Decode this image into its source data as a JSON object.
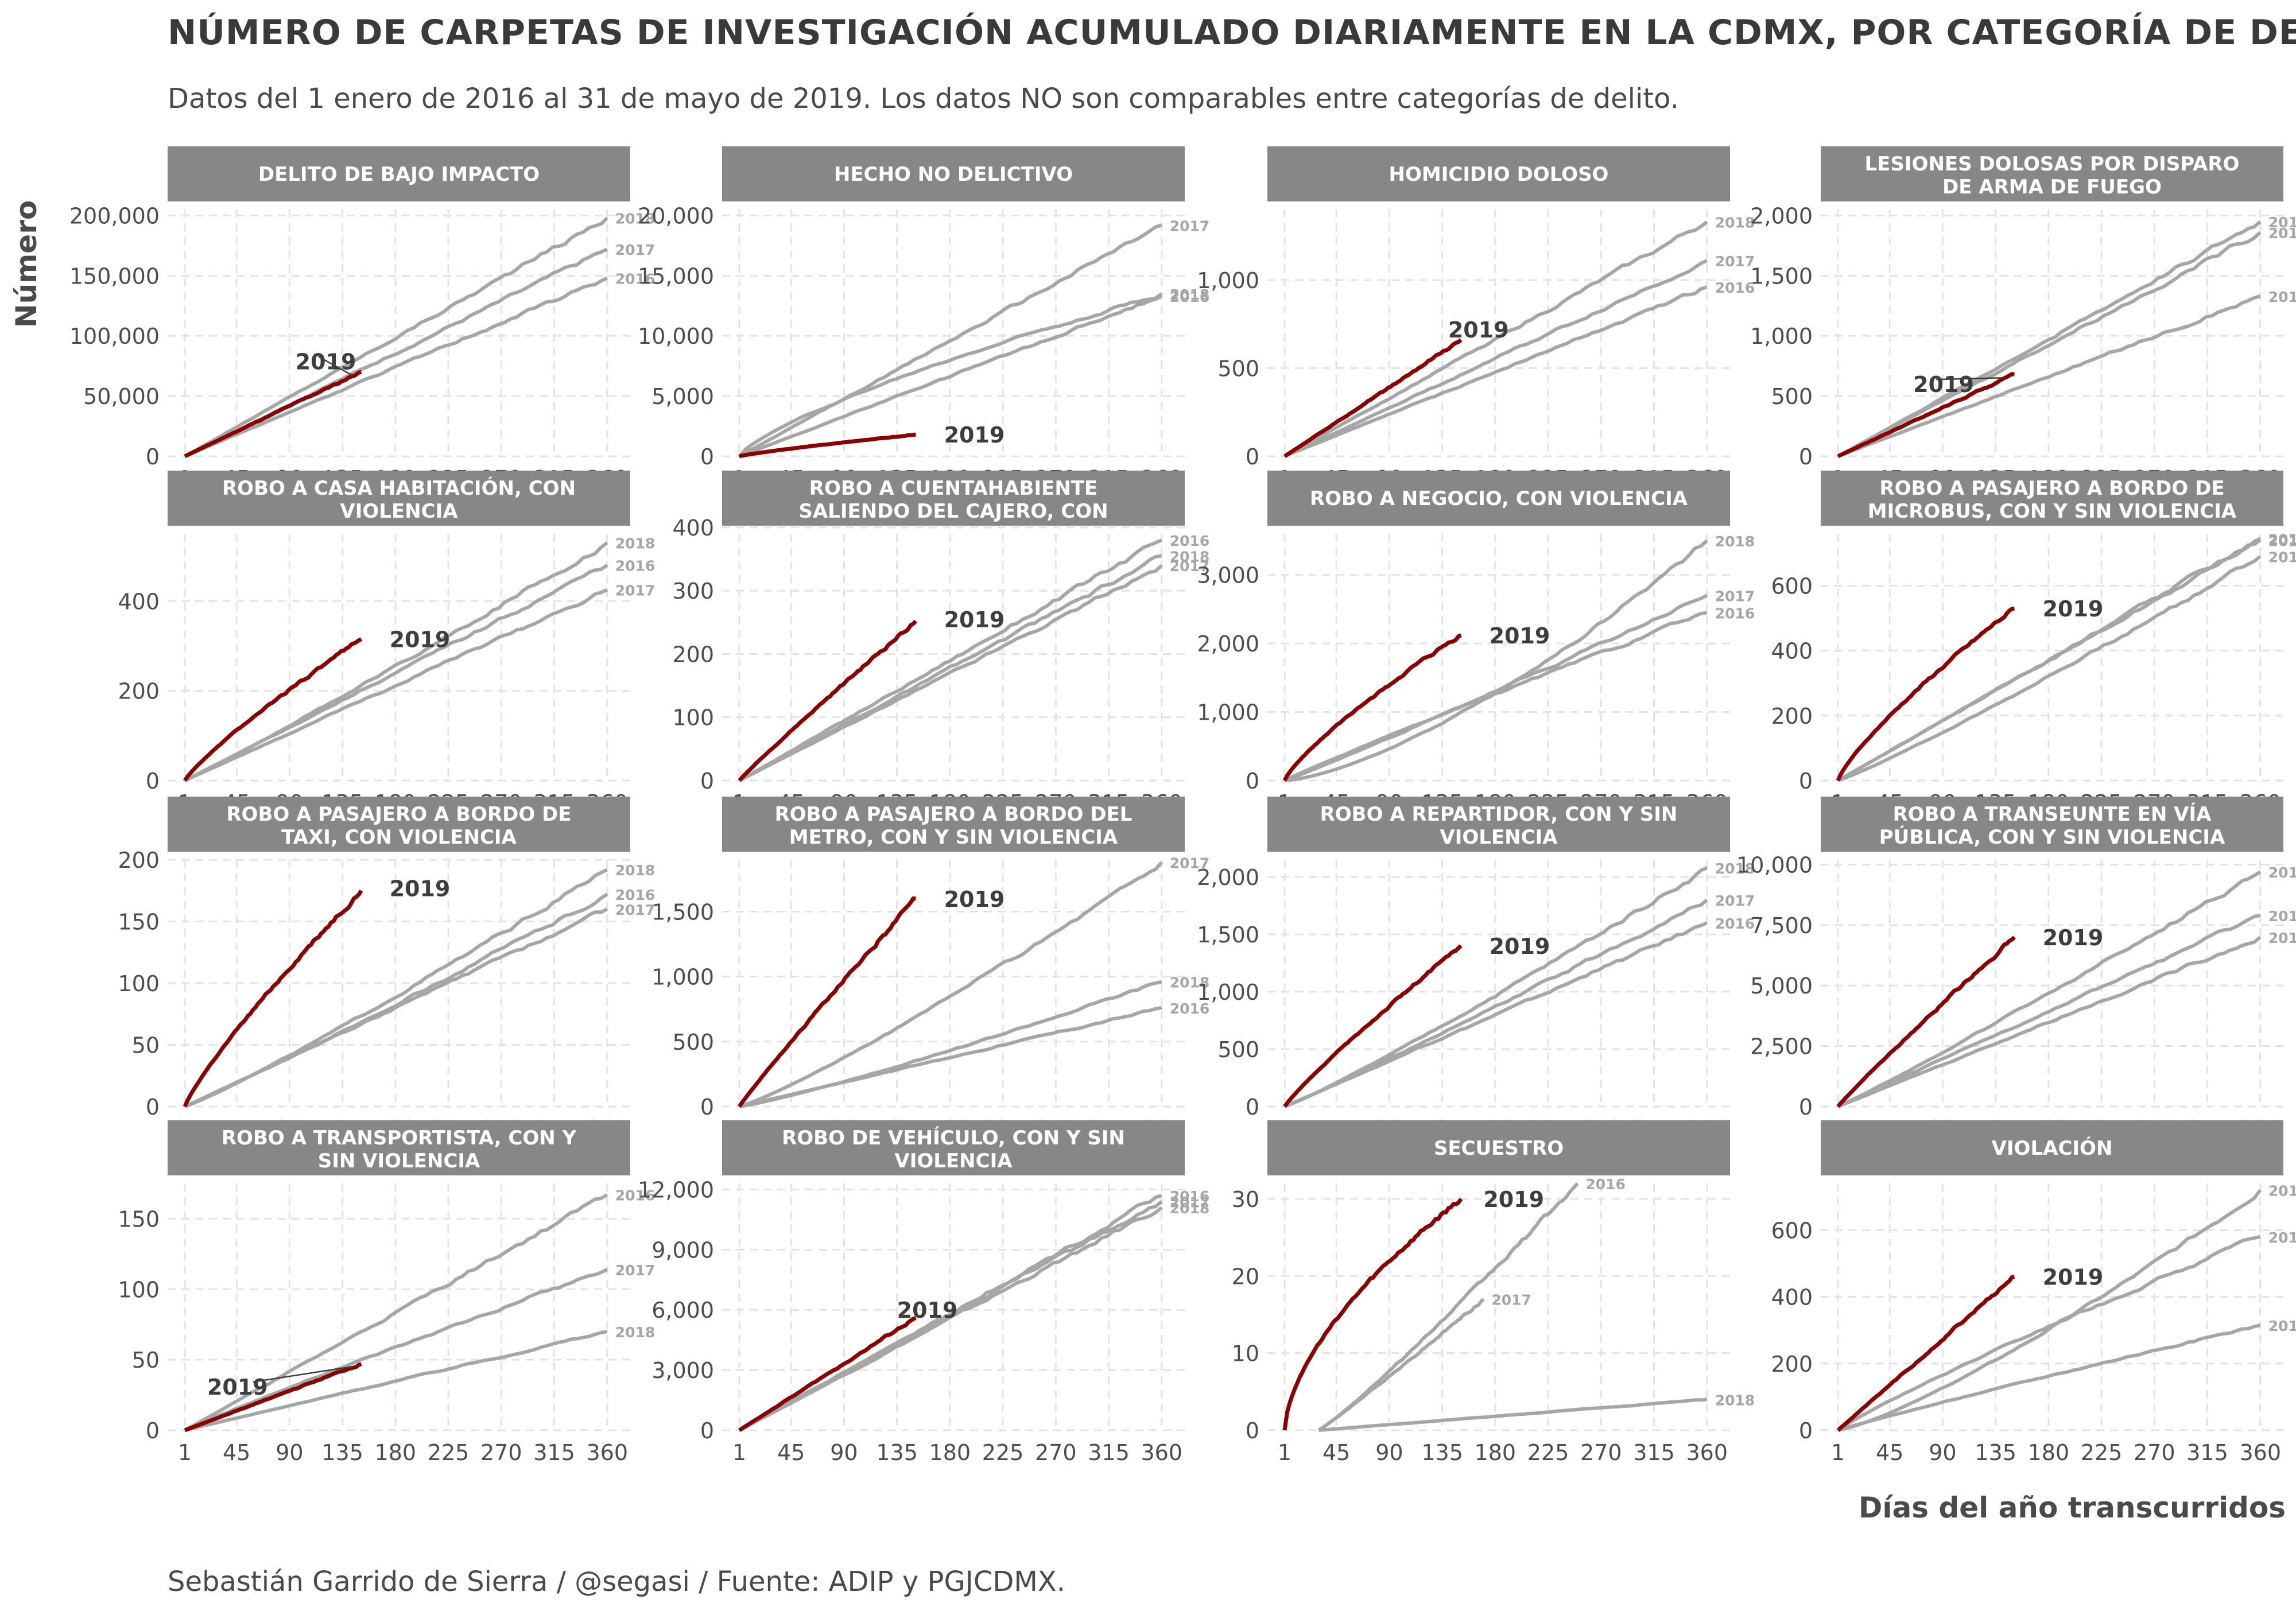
{
  "title": "NÚMERO DE CARPETAS DE INVESTIGACIÓN ACUMULADO DIARIAMENTE EN LA CDMX, POR CATEGORÍA DE DELITO",
  "subtitle": "Datos del 1 enero de 2016 al 31 de mayo de 2019. Los datos NO son comparables entre categorías de delito.",
  "ylabel": "Número",
  "xlabel": "Días del año transcurridos",
  "caption": "Sebastián Garrido de Sierra / @segasi / Fuente: ADIP y PGJCDMX.",
  "colors": {
    "strip_bg": "#878787",
    "strip_text": "#ffffff",
    "highlight": "#8b0000",
    "others": "#a6a6a6",
    "grid": "#e3e3e3",
    "label_dark": "#3d3d3d"
  },
  "chart_data": {
    "type": "line",
    "layout": "facet-grid-4x4",
    "x_ticks": [
      1,
      45,
      90,
      135,
      180,
      225,
      270,
      315,
      360
    ],
    "xlim": [
      1,
      365
    ],
    "grid": true,
    "legend": "none (direct labels)",
    "highlight_series": "2019",
    "panels": [
      {
        "title": "DELITO DE BAJO IMPACTO",
        "ylim": [
          0,
          205000
        ],
        "y_ticks": [
          0,
          50000,
          100000,
          150000,
          200000
        ],
        "y_tick_labels": [
          "0",
          "50,000",
          "100,000",
          "150,000",
          "200,000"
        ],
        "series": [
          {
            "name": "2018",
            "end": 198000,
            "curve": 1.0
          },
          {
            "name": "2017",
            "end": 172000,
            "curve": 1.0
          },
          {
            "name": "2016",
            "end": 148000,
            "curve": 1.0
          },
          {
            "name": "2019",
            "end": 70000,
            "end_day": 151,
            "curve": 1.0,
            "label_xy": [
              95,
              79000
            ],
            "leader": true
          }
        ]
      },
      {
        "title": "HECHO NO DELICTIVO",
        "ylim": [
          0,
          20500
        ],
        "y_ticks": [
          0,
          5000,
          10000,
          15000,
          20000
        ],
        "y_tick_labels": [
          "0",
          "5,000",
          "10,000",
          "15,000",
          "20,000"
        ],
        "series": [
          {
            "name": "2017",
            "end": 19200,
            "curve": 1.0
          },
          {
            "name": "2018",
            "end": 13500,
            "curve": 0.75
          },
          {
            "name": "2016",
            "end": 13300,
            "curve": 1.0
          },
          {
            "name": "2019",
            "end": 1800,
            "end_day": 151,
            "curve": 0.85,
            "label_xy": [
              175,
              1800
            ]
          }
        ]
      },
      {
        "title": "HOMICIDIO DOLOSO",
        "ylim": [
          0,
          1400
        ],
        "y_ticks": [
          0,
          500,
          1000
        ],
        "y_tick_labels": [
          "0",
          "500",
          "1,000"
        ],
        "series": [
          {
            "name": "2018",
            "end": 1330,
            "curve": 1.0
          },
          {
            "name": "2017",
            "end": 1110,
            "curve": 1.0
          },
          {
            "name": "2016",
            "end": 960,
            "curve": 1.0
          },
          {
            "name": "2019",
            "end": 660,
            "end_day": 151,
            "curve": 1.0,
            "label_xy": [
              140,
              720
            ]
          }
        ]
      },
      {
        "title": "LESIONES DOLOSAS POR DISPARO DE ARMA DE FUEGO",
        "ylim": [
          0,
          2050
        ],
        "y_ticks": [
          0,
          500,
          1000,
          1500,
          2000
        ],
        "y_tick_labels": [
          "0",
          "500",
          "1,000",
          "1,500",
          "2,000"
        ],
        "series": [
          {
            "name": "2018",
            "end": 1950,
            "curve": 1.0
          },
          {
            "name": "2017",
            "end": 1860,
            "curve": 1.0
          },
          {
            "name": "2016",
            "end": 1330,
            "curve": 1.0
          },
          {
            "name": "2019",
            "end": 680,
            "end_day": 151,
            "curve": 1.0,
            "label_xy": [
              65,
              600
            ],
            "leader": true
          }
        ]
      },
      {
        "title": "ROBO A CASA HABITACIÓN, CON VIOLENCIA",
        "ylim": [
          0,
          550
        ],
        "y_ticks": [
          0,
          200,
          400
        ],
        "y_tick_labels": [
          "0",
          "200",
          "400"
        ],
        "series": [
          {
            "name": "2018",
            "end": 530,
            "curve": 1.05
          },
          {
            "name": "2016",
            "end": 480,
            "curve": 1.0
          },
          {
            "name": "2017",
            "end": 425,
            "curve": 1.0
          },
          {
            "name": "2019",
            "end": 315,
            "end_day": 151,
            "curve": 0.85,
            "label_xy": [
              175,
              315
            ]
          }
        ]
      },
      {
        "title": "ROBO A CUENTAHABIENTE SALIENDO DEL CAJERO, CON VIOLENCIA",
        "ylim": [
          0,
          390
        ],
        "y_ticks": [
          0,
          100,
          200,
          300,
          400
        ],
        "y_tick_labels": [
          "0",
          "100",
          "200",
          "300",
          "400"
        ],
        "series": [
          {
            "name": "2016",
            "end": 380,
            "curve": 1.0
          },
          {
            "name": "2018",
            "end": 355,
            "curve": 1.0
          },
          {
            "name": "2017",
            "end": 340,
            "curve": 1.0
          },
          {
            "name": "2019",
            "end": 252,
            "end_day": 151,
            "curve": 0.95,
            "label_xy": [
              175,
              255
            ]
          }
        ]
      },
      {
        "title": "ROBO A NEGOCIO, CON VIOLENCIA",
        "ylim": [
          0,
          3600
        ],
        "y_ticks": [
          0,
          1000,
          2000,
          3000
        ],
        "y_tick_labels": [
          "0",
          "1,000",
          "2,000",
          "3,000"
        ],
        "series": [
          {
            "name": "2018",
            "end": 3500,
            "curve": 1.45
          },
          {
            "name": "2017",
            "end": 2700,
            "curve": 1.05
          },
          {
            "name": "2016",
            "end": 2450,
            "curve": 0.95
          },
          {
            "name": "2019",
            "end": 2120,
            "end_day": 151,
            "curve": 0.8,
            "label_xy": [
              175,
              2120
            ]
          }
        ]
      },
      {
        "title": "ROBO A PASAJERO A BORDO DE MICROBUS, CON Y SIN VIOLENCIA",
        "ylim": [
          0,
          760
        ],
        "y_ticks": [
          0,
          200,
          400,
          600
        ],
        "y_tick_labels": [
          "0",
          "200",
          "400",
          "600"
        ],
        "series": [
          {
            "name": "2016",
            "end": 745,
            "curve": 1.0
          },
          {
            "name": "2017",
            "end": 740,
            "curve": 1.0
          },
          {
            "name": "2018",
            "end": 690,
            "curve": 1.1
          },
          {
            "name": "2019",
            "end": 530,
            "end_day": 151,
            "curve": 0.8,
            "label_xy": [
              175,
              530
            ]
          }
        ]
      },
      {
        "title": "ROBO A PASAJERO A BORDO DE TAXI, CON VIOLENCIA",
        "ylim": [
          0,
          200
        ],
        "y_ticks": [
          0,
          50,
          100,
          150,
          200
        ],
        "y_tick_labels": [
          "0",
          "50",
          "100",
          "150",
          "200"
        ],
        "series": [
          {
            "name": "2018",
            "end": 192,
            "curve": 1.1
          },
          {
            "name": "2016",
            "end": 172,
            "curve": 1.05
          },
          {
            "name": "2017",
            "end": 160,
            "curve": 1.0
          },
          {
            "name": "2019",
            "end": 175,
            "end_day": 151,
            "curve": 0.85,
            "label_xy": [
              175,
              177
            ]
          }
        ]
      },
      {
        "title": "ROBO A PASAJERO A BORDO DEL METRO, CON Y SIN VIOLENCIA",
        "ylim": [
          0,
          1900
        ],
        "y_ticks": [
          0,
          500,
          1000,
          1500
        ],
        "y_tick_labels": [
          "0",
          "500",
          "1,000",
          "1,500"
        ],
        "series": [
          {
            "name": "2017",
            "end": 1880,
            "curve": 1.15
          },
          {
            "name": "2018",
            "end": 960,
            "curve": 1.15
          },
          {
            "name": "2016",
            "end": 760,
            "curve": 1.0
          },
          {
            "name": "2019",
            "end": 1600,
            "end_day": 151,
            "curve": 0.95,
            "label_xy": [
              175,
              1600
            ]
          }
        ]
      },
      {
        "title": "ROBO A REPARTIDOR, CON Y SIN VIOLENCIA",
        "ylim": [
          0,
          2150
        ],
        "y_ticks": [
          0,
          500,
          1000,
          1500,
          2000
        ],
        "y_tick_labels": [
          "0",
          "500",
          "1,000",
          "1,500",
          "2,000"
        ],
        "series": [
          {
            "name": "2018",
            "end": 2080,
            "curve": 1.1
          },
          {
            "name": "2017",
            "end": 1800,
            "curve": 1.05
          },
          {
            "name": "2016",
            "end": 1600,
            "curve": 1.0
          },
          {
            "name": "2019",
            "end": 1400,
            "end_day": 151,
            "curve": 0.9,
            "label_xy": [
              175,
              1400
            ]
          }
        ]
      },
      {
        "title": "ROBO A TRANSEUNTE EN VÍA PÚBLICA, CON Y SIN VIOLENCIA",
        "ylim": [
          0,
          10200
        ],
        "y_ticks": [
          0,
          2500,
          5000,
          7500,
          10000
        ],
        "y_tick_labels": [
          "0",
          "2,500",
          "5,000",
          "7,500",
          "10,000"
        ],
        "series": [
          {
            "name": "2018",
            "end": 9700,
            "curve": 1.05
          },
          {
            "name": "2017",
            "end": 7900,
            "curve": 1.0
          },
          {
            "name": "2016",
            "end": 7000,
            "curve": 1.0
          },
          {
            "name": "2019",
            "end": 7000,
            "end_day": 151,
            "curve": 0.95,
            "label_xy": [
              175,
              7000
            ]
          }
        ]
      },
      {
        "title": "ROBO A TRANSPORTISTA, CON Y SIN VIOLENCIA",
        "ylim": [
          0,
          175
        ],
        "y_ticks": [
          0,
          50,
          100,
          150
        ],
        "y_tick_labels": [
          "0",
          "50",
          "100",
          "150"
        ],
        "series": [
          {
            "name": "2016",
            "end": 167,
            "curve": 1.0
          },
          {
            "name": "2017",
            "end": 114,
            "curve": 0.95
          },
          {
            "name": "2018",
            "end": 70,
            "curve": 1.0
          },
          {
            "name": "2019",
            "end": 47,
            "end_day": 151,
            "curve": 1.0,
            "label_xy": [
              20,
              31
            ],
            "leader": true
          }
        ]
      },
      {
        "title": "ROBO DE VEHÍCULO, CON Y SIN VIOLENCIA",
        "ylim": [
          0,
          12300
        ],
        "y_ticks": [
          0,
          3000,
          6000,
          9000,
          12000
        ],
        "y_tick_labels": [
          "0",
          "3,000",
          "6,000",
          "9,000",
          "12,000"
        ],
        "series": [
          {
            "name": "2016",
            "end": 11700,
            "curve": 1.0
          },
          {
            "name": "2017",
            "end": 11400,
            "curve": 1.0
          },
          {
            "name": "2018",
            "end": 11100,
            "curve": 1.0
          },
          {
            "name": "2019",
            "end": 5600,
            "end_day": 151,
            "curve": 1.0,
            "label_xy": [
              135,
              6000
            ]
          }
        ]
      },
      {
        "title": "SECUESTRO",
        "ylim": [
          0,
          32
        ],
        "y_ticks": [
          0,
          10,
          20,
          30
        ],
        "y_tick_labels": [
          "0",
          "10",
          "20",
          "30"
        ],
        "series": [
          {
            "name": "2016",
            "start_day": 30,
            "end": 32,
            "end_day": 250,
            "curve": 1.1
          },
          {
            "name": "2017",
            "start_day": 30,
            "end": 17,
            "end_day": 170,
            "curve": 1.05
          },
          {
            "name": "2018",
            "start_day": 30,
            "end": 4,
            "end_day": 360,
            "curve": 1.0
          },
          {
            "name": "2019",
            "end": 30,
            "end_day": 151,
            "curve": 0.6,
            "label_xy": [
              170,
              30
            ]
          }
        ]
      },
      {
        "title": "VIOLACIÓN",
        "ylim": [
          0,
          740
        ],
        "y_ticks": [
          0,
          200,
          400,
          600
        ],
        "y_tick_labels": [
          "0",
          "200",
          "400",
          "600"
        ],
        "series": [
          {
            "name": "2018",
            "end": 720,
            "curve": 1.25
          },
          {
            "name": "2016",
            "end": 580,
            "curve": 0.9
          },
          {
            "name": "2017",
            "end": 315,
            "curve": 0.95
          },
          {
            "name": "2019",
            "end": 460,
            "end_day": 151,
            "curve": 1.0,
            "label_xy": [
              175,
              460
            ]
          }
        ]
      }
    ]
  }
}
